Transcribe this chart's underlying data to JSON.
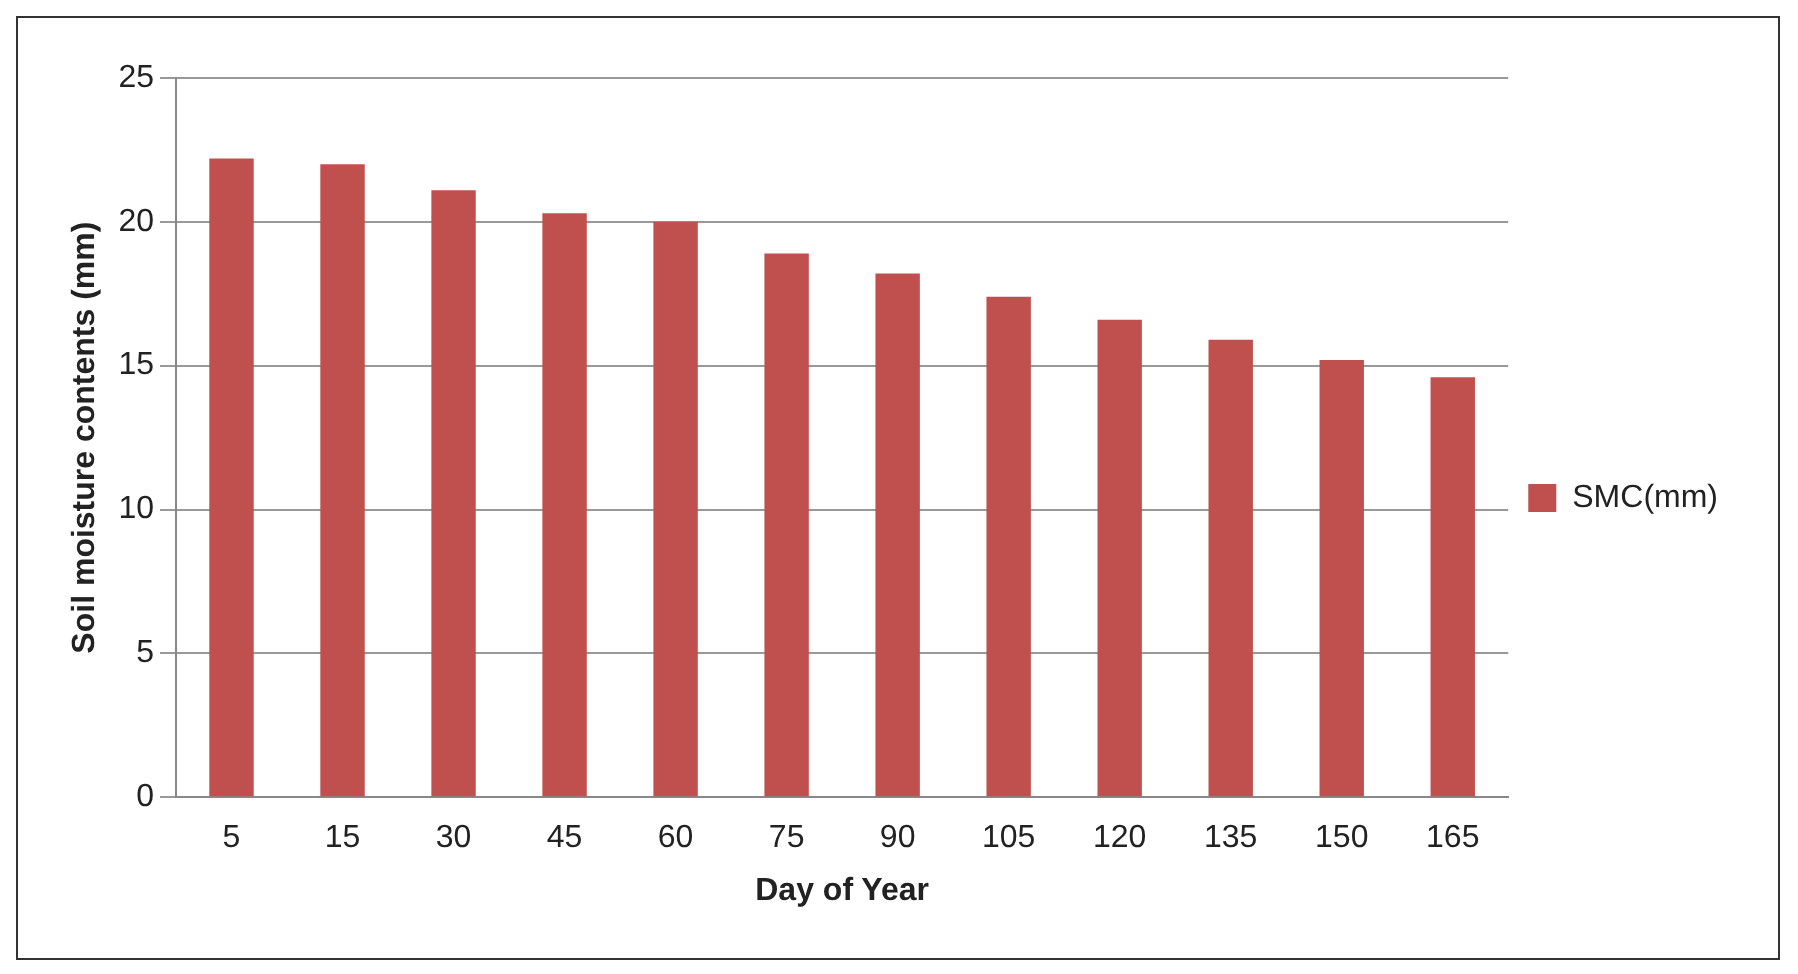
{
  "chart_data": {
    "type": "bar",
    "xlabel": "Day of Year",
    "ylabel": "Soil moisture contents (mm)",
    "categories": [
      "5",
      "15",
      "30",
      "45",
      "60",
      "75",
      "90",
      "105",
      "120",
      "135",
      "150",
      "165"
    ],
    "series": [
      {
        "name": "SMC(mm)",
        "color": "#c0504d",
        "values": [
          22.2,
          22.0,
          21.1,
          20.3,
          20.0,
          18.9,
          18.2,
          17.4,
          16.6,
          15.9,
          15.2,
          14.6
        ]
      }
    ],
    "ylim": [
      0,
      25
    ],
    "yticks": [
      0,
      5,
      10,
      15,
      20,
      25
    ],
    "grid": "y",
    "legend": "right"
  }
}
